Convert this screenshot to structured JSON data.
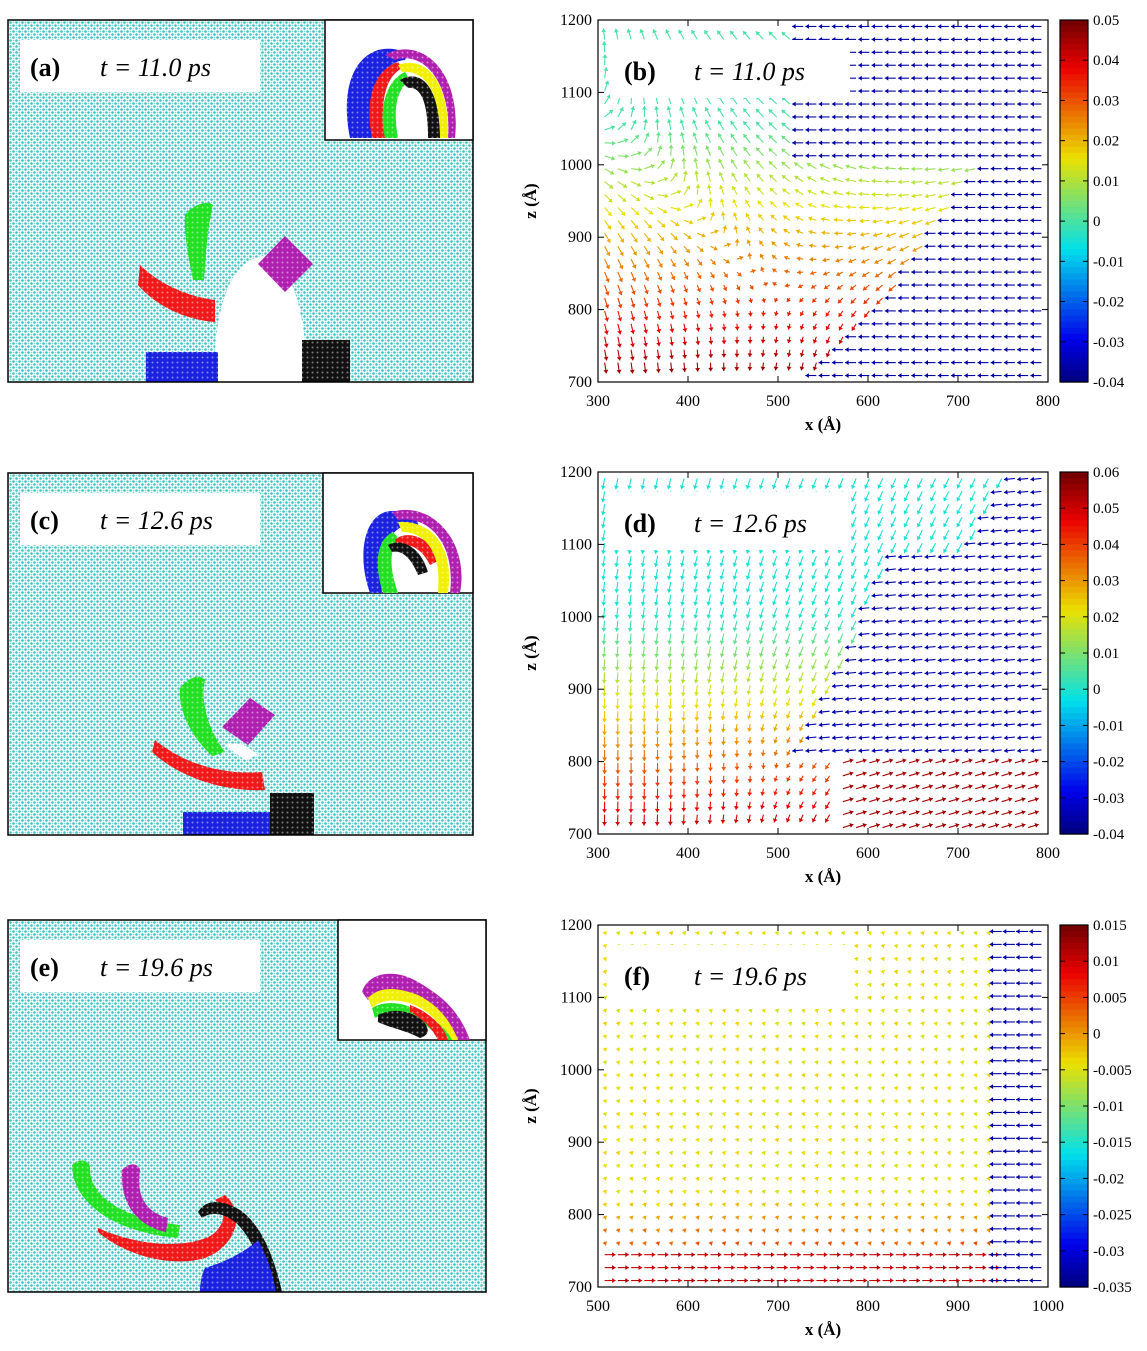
{
  "rows": [
    {
      "atom_label": "(a)",
      "atom_time": "t = 11.0 ps",
      "vec_label": "(b)",
      "vec_time": "t = 11.0 ps",
      "xticks": [
        "300",
        "400",
        "500",
        "600",
        "700",
        "800"
      ],
      "zticks": [
        "700",
        "800",
        "900",
        "1000",
        "1100",
        "1200"
      ],
      "cticks": [
        "0.05",
        "0.04",
        "0.03",
        "0.02",
        "0.01",
        "0",
        "-0.01",
        "-0.02",
        "-0.03",
        "-0.04"
      ],
      "xlabel": "x (Å)",
      "zlabel": "z (Å)"
    },
    {
      "atom_label": "(c)",
      "atom_time": "t = 12.6 ps",
      "vec_label": "(d)",
      "vec_time": "t = 12.6 ps",
      "xticks": [
        "300",
        "400",
        "500",
        "600",
        "700",
        "800"
      ],
      "zticks": [
        "700",
        "800",
        "900",
        "1000",
        "1100",
        "1200"
      ],
      "cticks": [
        "0.06",
        "0.05",
        "0.04",
        "0.03",
        "0.02",
        "0.01",
        "0",
        "-0.01",
        "-0.02",
        "-0.03",
        "-0.04"
      ],
      "xlabel": "x (Å)",
      "zlabel": "z (Å)"
    },
    {
      "atom_label": "(e)",
      "atom_time": "t = 19.6 ps",
      "vec_label": "(f)",
      "vec_time": "t = 19.6 ps",
      "xticks": [
        "500",
        "600",
        "700",
        "800",
        "900",
        "1000"
      ],
      "zticks": [
        "700",
        "800",
        "900",
        "1000",
        "1100",
        "1200"
      ],
      "cticks": [
        "0.015",
        "0.01",
        "0.005",
        "0",
        "-0.005",
        "-0.01",
        "-0.015",
        "-0.02",
        "-0.025",
        "-0.03",
        "-0.035"
      ],
      "xlabel": "x (Å)",
      "zlabel": "z (Å)"
    }
  ],
  "colors": {
    "matrix": "#3fbfbf",
    "green": "#22e022",
    "red": "#f01818",
    "blue": "#1a22e0",
    "black": "#111111",
    "magenta": "#b020b0",
    "yellow": "#f0f000"
  }
}
